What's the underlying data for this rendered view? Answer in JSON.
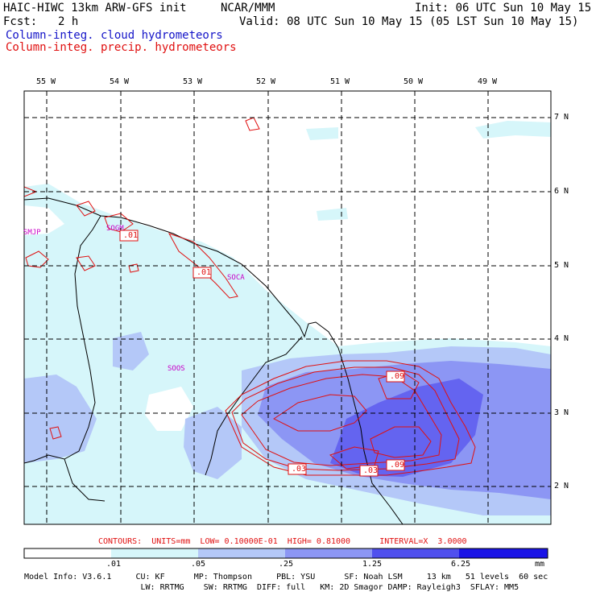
{
  "header": {
    "model_title": "HAIC-HIWC 13km ARW-GFS init",
    "org": "NCAR/MMM",
    "init": "Init: 06 UTC Sun 10 May 15",
    "fcst_label": "Fcst:",
    "fcst_value": "2 h",
    "valid": "Valid: 08 UTC Sun 10 May 15 (05 LST Sun 10 May 15)",
    "field_blue": "Column-integ. cloud hydrometeors",
    "field_red": "Column-integ. precip. hydrometeors"
  },
  "map": {
    "lon_labels": [
      "55 W",
      "54 W",
      "53 W",
      "52 W",
      "51 W",
      "50 W",
      "49 W"
    ],
    "lat_labels": [
      "7 N",
      "6 N",
      "5 N",
      "4 N",
      "3 N",
      "2 N"
    ],
    "stations": [
      "SMJP",
      "SOGM",
      "SOCA",
      "SOOS"
    ],
    "contour_labels": [
      ".01",
      ".01",
      ".09",
      ".03",
      ".03",
      ".09"
    ],
    "shading_colors": [
      "#ffffff",
      "#d6f6fa",
      "#b4c8f8",
      "#8c96f4",
      "#6464f0",
      "#3c3cec",
      "#1a14e6"
    ]
  },
  "contours_info": "CONTOURS:  UNITS=mm  LOW= 0.10000E-01  HIGH= 0.81000      INTERVAL=X  3.0000",
  "colorbar": {
    "ticks": [
      ".01",
      ".05",
      ".25",
      "1.25",
      "6.25"
    ],
    "units": "mm"
  },
  "footer": {
    "line1": "Model Info: V3.6.1     CU: KF      MP: Thompson     PBL: YSU      SF: Noah LSM     13 km   51 levels  60 sec",
    "line2": "                        LW: RRTMG    SW: RRTMG  DIFF: full   KM: 2D Smagor DAMP: Rayleigh3  SFLAY: MM5"
  }
}
